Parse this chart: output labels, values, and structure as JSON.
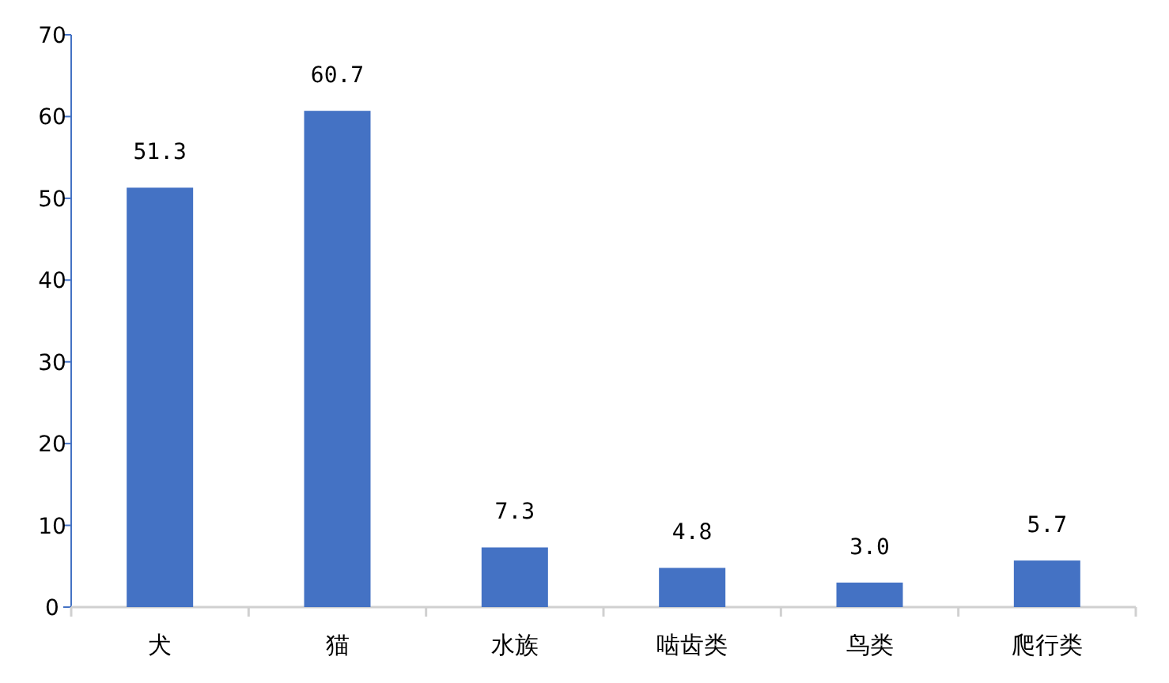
{
  "chart_data": {
    "type": "bar",
    "categories": [
      "犬",
      "猫",
      "水族",
      "啮齿类",
      "鸟类",
      "爬行类"
    ],
    "values": [
      51.3,
      60.7,
      7.3,
      4.8,
      3.0,
      5.7
    ],
    "color": "#4472c4",
    "ylim": [
      0,
      70
    ],
    "yticks": [
      0,
      10,
      20,
      30,
      40,
      50,
      60,
      70
    ],
    "value_labels": [
      "51.3",
      "60.7",
      "7.3",
      "4.8",
      "3.0",
      "5.7"
    ]
  }
}
